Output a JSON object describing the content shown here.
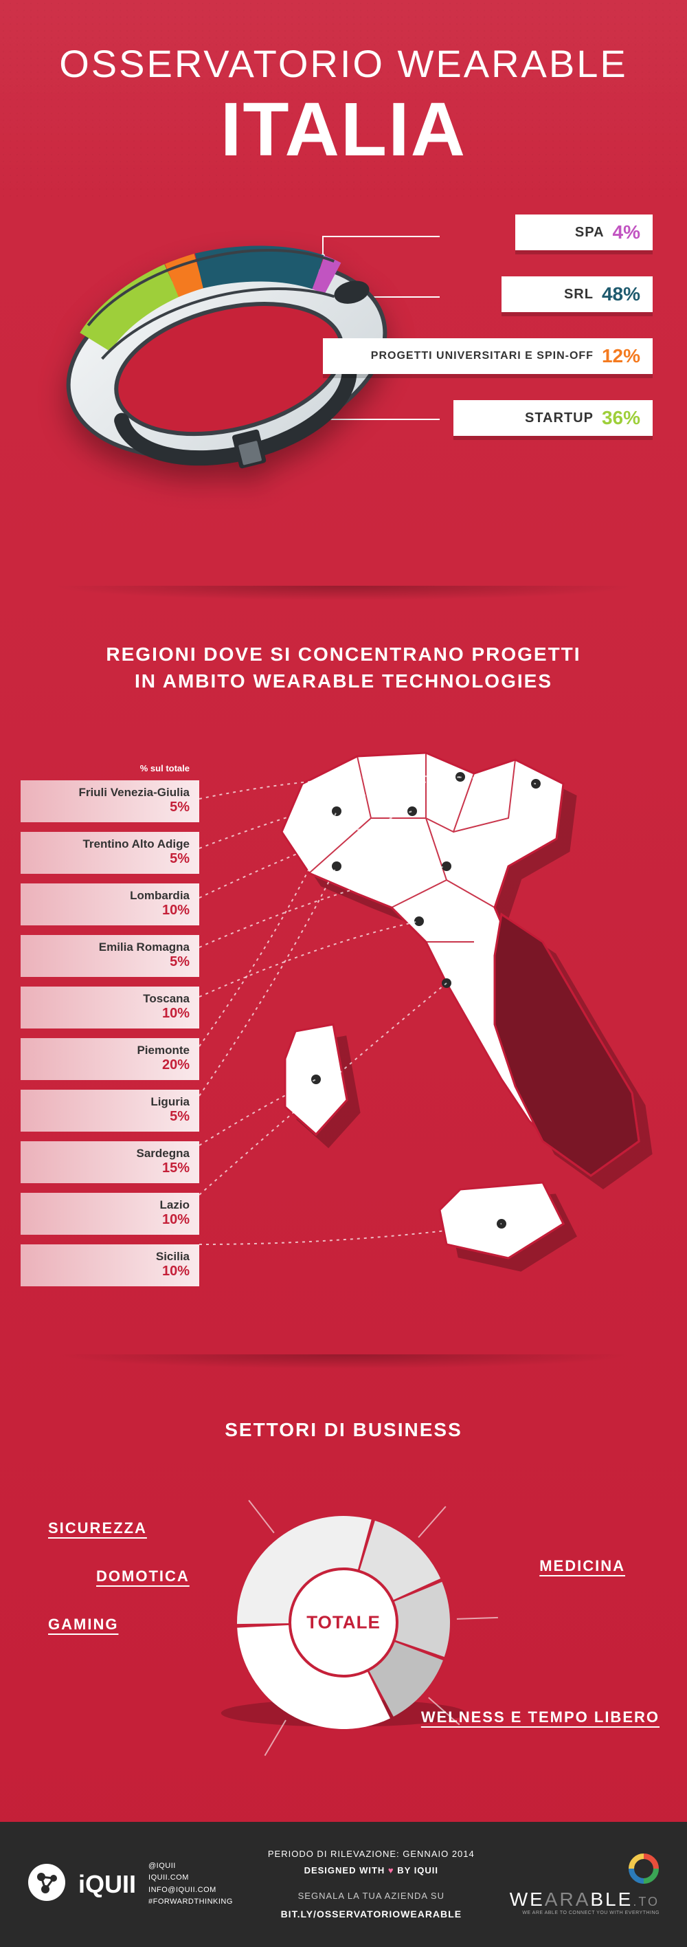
{
  "header": {
    "line1": "OSSERVATORIO WEARABLE",
    "line2": "ITALIA"
  },
  "companyTypes": {
    "items": [
      {
        "key": "spa",
        "label": "SPA",
        "pct": "4%",
        "color": "#c154c1"
      },
      {
        "key": "srl",
        "label": "SRL",
        "pct": "48%",
        "color": "#1e5a6e"
      },
      {
        "key": "univ",
        "label": "PROGETTI UNIVERSITARI E SPIN-OFF",
        "pct": "12%",
        "color": "#f47a1f"
      },
      {
        "key": "startup",
        "label": "STARTUP",
        "pct": "36%",
        "color": "#9ecf3a"
      }
    ]
  },
  "regions": {
    "title_line1": "REGIONI DOVE SI CONCENTRANO PROGETTI",
    "title_line2": "IN AMBITO WEARABLE TECHNOLOGIES",
    "list_head": "% sul totale",
    "items": [
      {
        "name": "Friuli Venezia-Giulia",
        "pct": "5%"
      },
      {
        "name": "Trentino Alto Adige",
        "pct": "5%"
      },
      {
        "name": "Lombardia",
        "pct": "10%"
      },
      {
        "name": "Emilia Romagna",
        "pct": "5%"
      },
      {
        "name": "Toscana",
        "pct": "10%"
      },
      {
        "name": "Piemonte",
        "pct": "20%"
      },
      {
        "name": "Liguria",
        "pct": "5%"
      },
      {
        "name": "Sardegna",
        "pct": "15%"
      },
      {
        "name": "Lazio",
        "pct": "10%"
      },
      {
        "name": "Sicilia",
        "pct": "10%"
      }
    ],
    "map": {
      "active_fill": "#ffffff",
      "inactive_fill": "#7a1526",
      "stroke": "#c41f38"
    }
  },
  "sectors": {
    "title": "SETTORI DI BUSINESS",
    "center_label": "TOTALE",
    "slices": [
      {
        "key": "welness",
        "label": "WELNESS E TEMPO LIBERO",
        "value": 32,
        "color": "#ffffff"
      },
      {
        "key": "medicina",
        "label": "MEDICINA",
        "value": 30,
        "color": "#f0f0f0"
      },
      {
        "key": "sicurezza",
        "label": "SICUREZZA",
        "value": 14,
        "color": "#e2e2e2"
      },
      {
        "key": "domotica",
        "label": "DOMOTICA",
        "value": 12,
        "color": "#d3d3d3"
      },
      {
        "key": "gaming",
        "label": "GAMING",
        "value": 12,
        "color": "#bfbfbf"
      }
    ],
    "donut": {
      "outer_r": 155,
      "inner_r": 80,
      "gap_deg": 2,
      "background": "#c41f38"
    }
  },
  "footer": {
    "brand": "iQUII",
    "lines": [
      "@IQUII",
      "IQUII.COM",
      "INFO@IQUII.COM",
      "#FORWARDTHINKING"
    ],
    "period": "PERIODO DI RILEVAZIONE: GENNAIO 2014",
    "designed": "DESIGNED WITH ♥ BY IQUII",
    "segnala": "SEGNALA LA TUA AZIENDA SU",
    "link": "BIT.LY/OSSERVATORIOWEARABLE",
    "right_brand_a": "WE",
    "right_brand_b": "ARA",
    "right_brand_c": "BLE",
    "right_brand_suffix": ".TO",
    "tagline": "WE ARE ABLE TO CONNECT YOU WITH EVERYTHING"
  }
}
